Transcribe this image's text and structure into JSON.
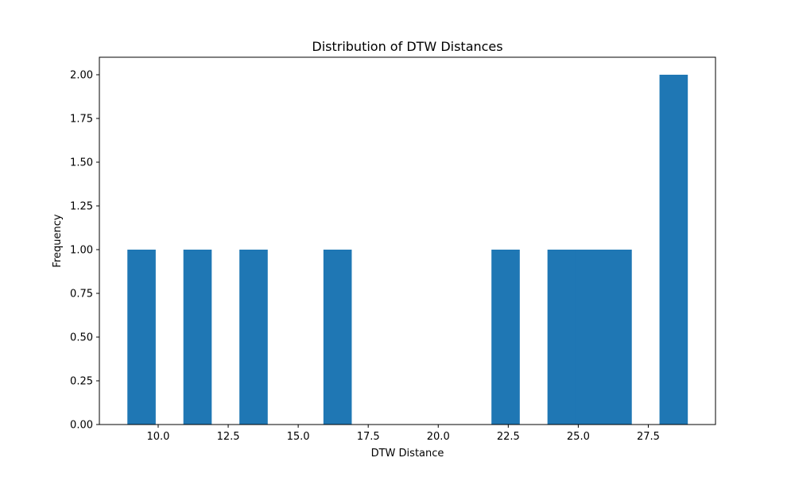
{
  "chart_data": {
    "type": "bar",
    "subtype": "histogram",
    "title": "Distribution of DTW Distances",
    "xlabel": "DTW Distance",
    "ylabel": "Frequency",
    "xlim": [
      7.9,
      29.9
    ],
    "ylim": [
      0,
      2.1
    ],
    "x_ticks": [
      10,
      12.5,
      15,
      17.5,
      20,
      22.5,
      25,
      27.5
    ],
    "x_tick_labels": [
      "10.0",
      "12.5",
      "15.0",
      "17.5",
      "20.0",
      "22.5",
      "25.0",
      "27.5"
    ],
    "y_ticks": [
      0,
      0.25,
      0.5,
      0.75,
      1,
      1.25,
      1.5,
      1.75,
      2
    ],
    "y_tick_labels": [
      "0.00",
      "0.25",
      "0.50",
      "0.75",
      "1.00",
      "1.25",
      "1.50",
      "1.75",
      "2.00"
    ],
    "bin_edges": [
      8.9,
      9.9,
      10.9,
      11.9,
      12.9,
      13.9,
      14.9,
      15.9,
      16.9,
      17.9,
      18.9,
      19.9,
      20.9,
      21.9,
      22.9,
      23.9,
      24.9,
      25.9,
      26.9,
      27.9,
      28.9
    ],
    "values": [
      1,
      0,
      1,
      0,
      1,
      0,
      0,
      1,
      0,
      0,
      0,
      0,
      0,
      1,
      0,
      1,
      1,
      1,
      0,
      2
    ],
    "bar_color": "#1f77b4",
    "grid": false,
    "legend": false
  }
}
